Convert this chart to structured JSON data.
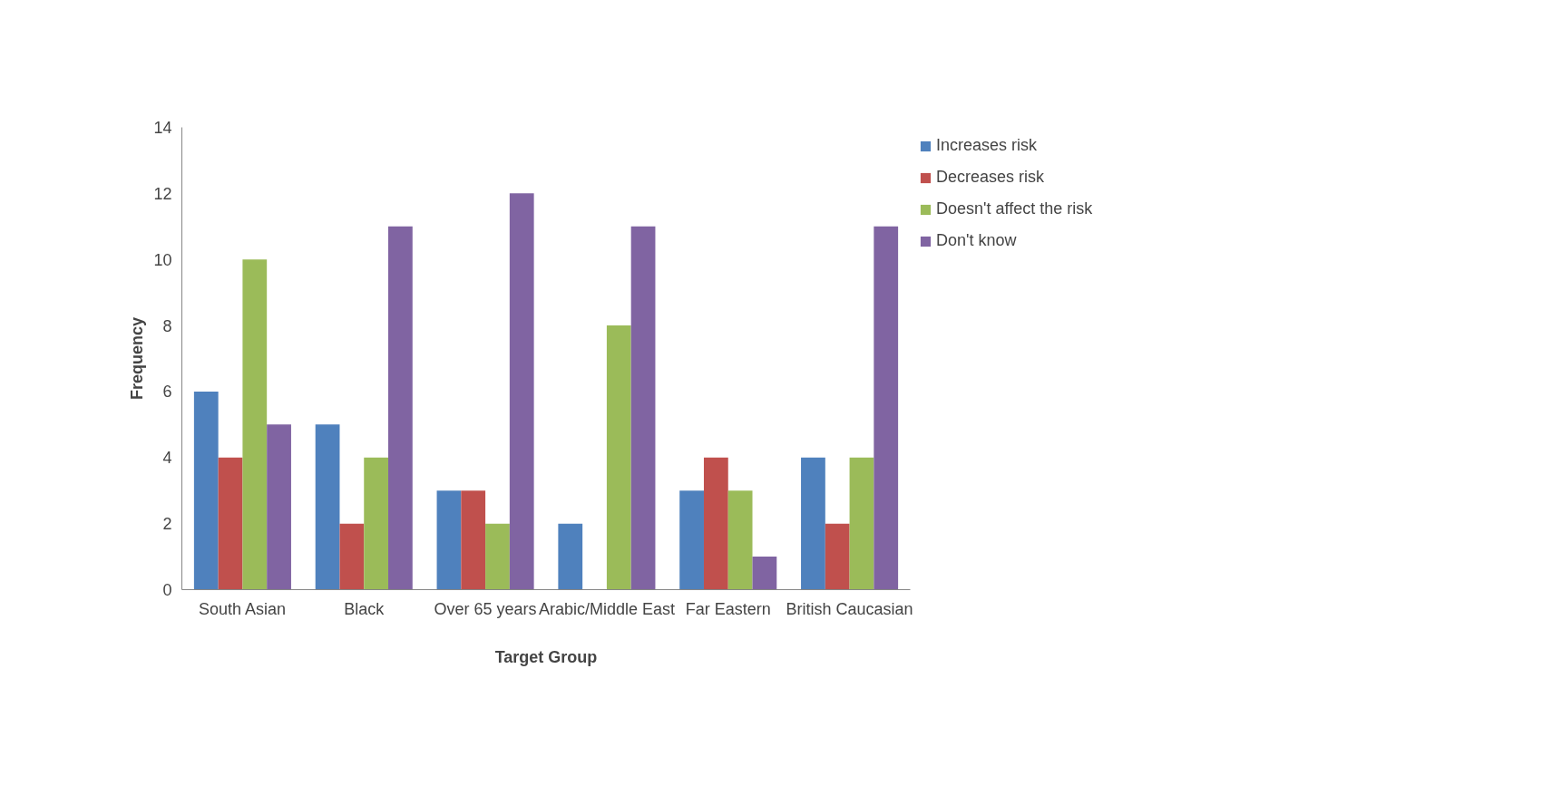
{
  "chart_data": {
    "type": "bar",
    "xlabel": "Target Group",
    "ylabel": "Frequency",
    "categories": [
      "South Asian",
      "Black",
      "Over 65 years",
      "Arabic/Middle East",
      "Far Eastern",
      "British Caucasian"
    ],
    "series": [
      {
        "name": "Increases risk",
        "color": "#4f81bd",
        "values": [
          6,
          5,
          3,
          2,
          3,
          4
        ]
      },
      {
        "name": "Decreases risk",
        "color": "#c0504d",
        "values": [
          4,
          2,
          3,
          0,
          4,
          2
        ]
      },
      {
        "name": "Doesn't affect the risk",
        "color": "#9bbb59",
        "values": [
          10,
          4,
          2,
          8,
          3,
          4
        ]
      },
      {
        "name": "Don't know",
        "color": "#8064a2",
        "values": [
          5,
          11,
          12,
          11,
          1,
          11
        ]
      }
    ],
    "ylim": [
      0,
      14
    ],
    "yticks": [
      0,
      2,
      4,
      6,
      8,
      10,
      12,
      14
    ],
    "grid": false,
    "legend": "top right"
  }
}
